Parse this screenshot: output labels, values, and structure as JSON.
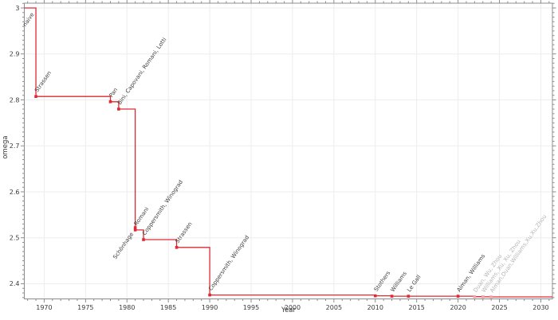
{
  "chart_data": {
    "type": "line",
    "step": true,
    "title": "",
    "xlabel": "Year",
    "ylabel": "omega",
    "x_range": [
      1967.6,
      2031.4
    ],
    "y_range": [
      2.367,
      3.0104
    ],
    "x_ticks_major": [
      1970,
      1975,
      1980,
      1985,
      1990,
      1995,
      2000,
      2005,
      2010,
      2015,
      2020,
      2025,
      2030
    ],
    "x_tick_labels": [
      "1970",
      "1975",
      "1980",
      "1985",
      "1990",
      "1995",
      "2000",
      "2005",
      "2010",
      "2015",
      "2020",
      "2025",
      "2030"
    ],
    "x_minor_step": 1,
    "y_ticks_major": [
      2.4,
      2.5,
      2.6,
      2.7,
      2.8,
      2.9,
      3.0
    ],
    "y_tick_labels": [
      "2.4",
      "2.5",
      "2.6",
      "2.7",
      "2.8",
      "2.9",
      "3"
    ],
    "y_minor_step": 0.01,
    "grid": true,
    "legend": "none",
    "colors": {
      "line": "#dd2a33",
      "recent_marker": "#f0a3a8",
      "grid": "#ededed",
      "axis": "#8c8c8c",
      "tick_text": "#3a3a3a",
      "label": "#3d3d3d",
      "recent_label": "#b5b5b5"
    },
    "points": [
      {
        "year": 1969,
        "omega": 3,
        "label": "naive",
        "marker": false,
        "label_anchor": "end"
      },
      {
        "year": 1969,
        "omega": 2.8074,
        "label": "Strassen"
      },
      {
        "year": 1978,
        "omega": 2.796,
        "label": "Pan"
      },
      {
        "year": 1979,
        "omega": 2.78,
        "label": "Bini, Capovani, Romani, Lotti"
      },
      {
        "year": 1981,
        "omega": 2.522,
        "label": "Schönhage",
        "label_anchor": "end"
      },
      {
        "year": 1981,
        "omega": 2.517,
        "label": "Romani"
      },
      {
        "year": 1982,
        "omega": 2.496,
        "label": "Coppersmith, Winograd"
      },
      {
        "year": 1986,
        "omega": 2.479,
        "label": "Strassen"
      },
      {
        "year": 1990,
        "omega": 2.3755,
        "label": "Coppersmith, Winograd"
      },
      {
        "year": 2010,
        "omega": 2.3737,
        "label": "Stothers"
      },
      {
        "year": 2012,
        "omega": 2.3729,
        "label": "Williams"
      },
      {
        "year": 2014,
        "omega": 2.3728639,
        "label": "Le Gall"
      },
      {
        "year": 2020,
        "omega": 2.3728596,
        "label": "Alman, Williams"
      },
      {
        "year": 2022,
        "omega": 2.371866,
        "label": "Duan, Wu, Zhou",
        "recent": true
      },
      {
        "year": 2023,
        "omega": 2.371552,
        "label": "Williams, Xu, Xu, Zhou",
        "recent": true
      },
      {
        "year": 2024,
        "omega": 2.371339,
        "label": "Alman,Duan,Williams,Xu,Xu,Zhou",
        "recent": true
      }
    ]
  }
}
